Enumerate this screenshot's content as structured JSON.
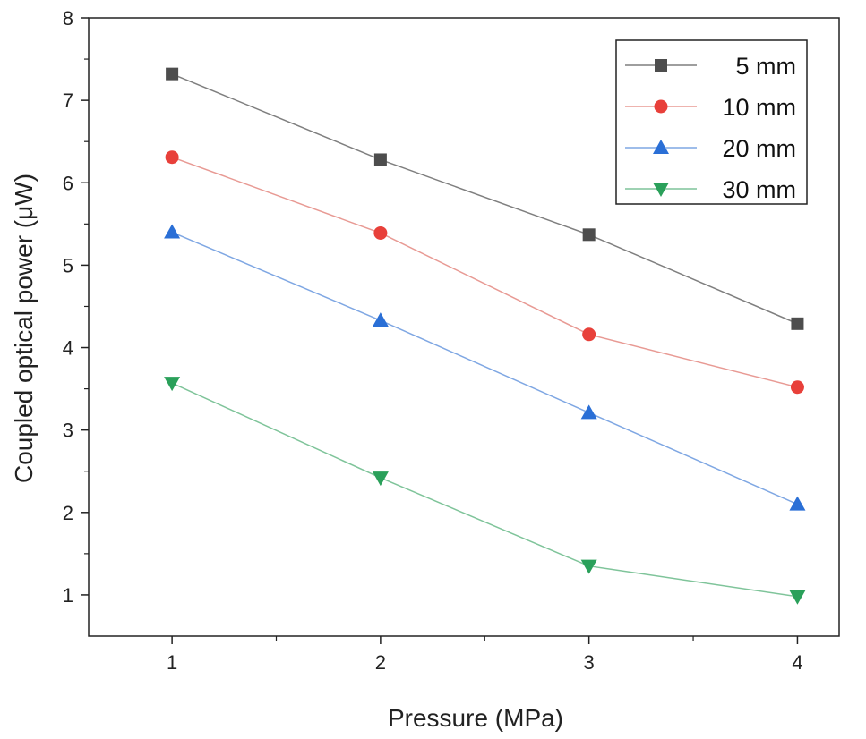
{
  "chart_data": {
    "type": "line",
    "xlabel": "Pressure (MPa)",
    "ylabel": "Coupled optical power (μW)",
    "xlim": [
      0.6,
      4.2
    ],
    "ylim": [
      0.5,
      8
    ],
    "xticks": [
      1,
      2,
      3,
      4
    ],
    "yticks": [
      1,
      2,
      3,
      4,
      5,
      6,
      7,
      8
    ],
    "x": [
      1,
      2,
      3,
      4
    ],
    "grid": false,
    "legend_position": "top-right",
    "series": [
      {
        "name": "5 mm",
        "values": [
          7.32,
          6.28,
          5.37,
          4.29
        ],
        "marker": "square",
        "color": "#4d4d4d",
        "line_color": "#7f7f7f"
      },
      {
        "name": "10 mm",
        "values": [
          6.31,
          5.39,
          4.16,
          3.52
        ],
        "marker": "circle",
        "color": "#e8403a",
        "line_color": "#e89a94"
      },
      {
        "name": "20 mm",
        "values": [
          5.4,
          4.33,
          3.21,
          2.1
        ],
        "marker": "triangle-up",
        "color": "#2a6fd6",
        "line_color": "#7fa7e3"
      },
      {
        "name": "30 mm",
        "values": [
          3.57,
          2.42,
          1.35,
          0.98
        ],
        "marker": "triangle-down",
        "color": "#2aa05a",
        "line_color": "#7fc49a"
      }
    ]
  }
}
